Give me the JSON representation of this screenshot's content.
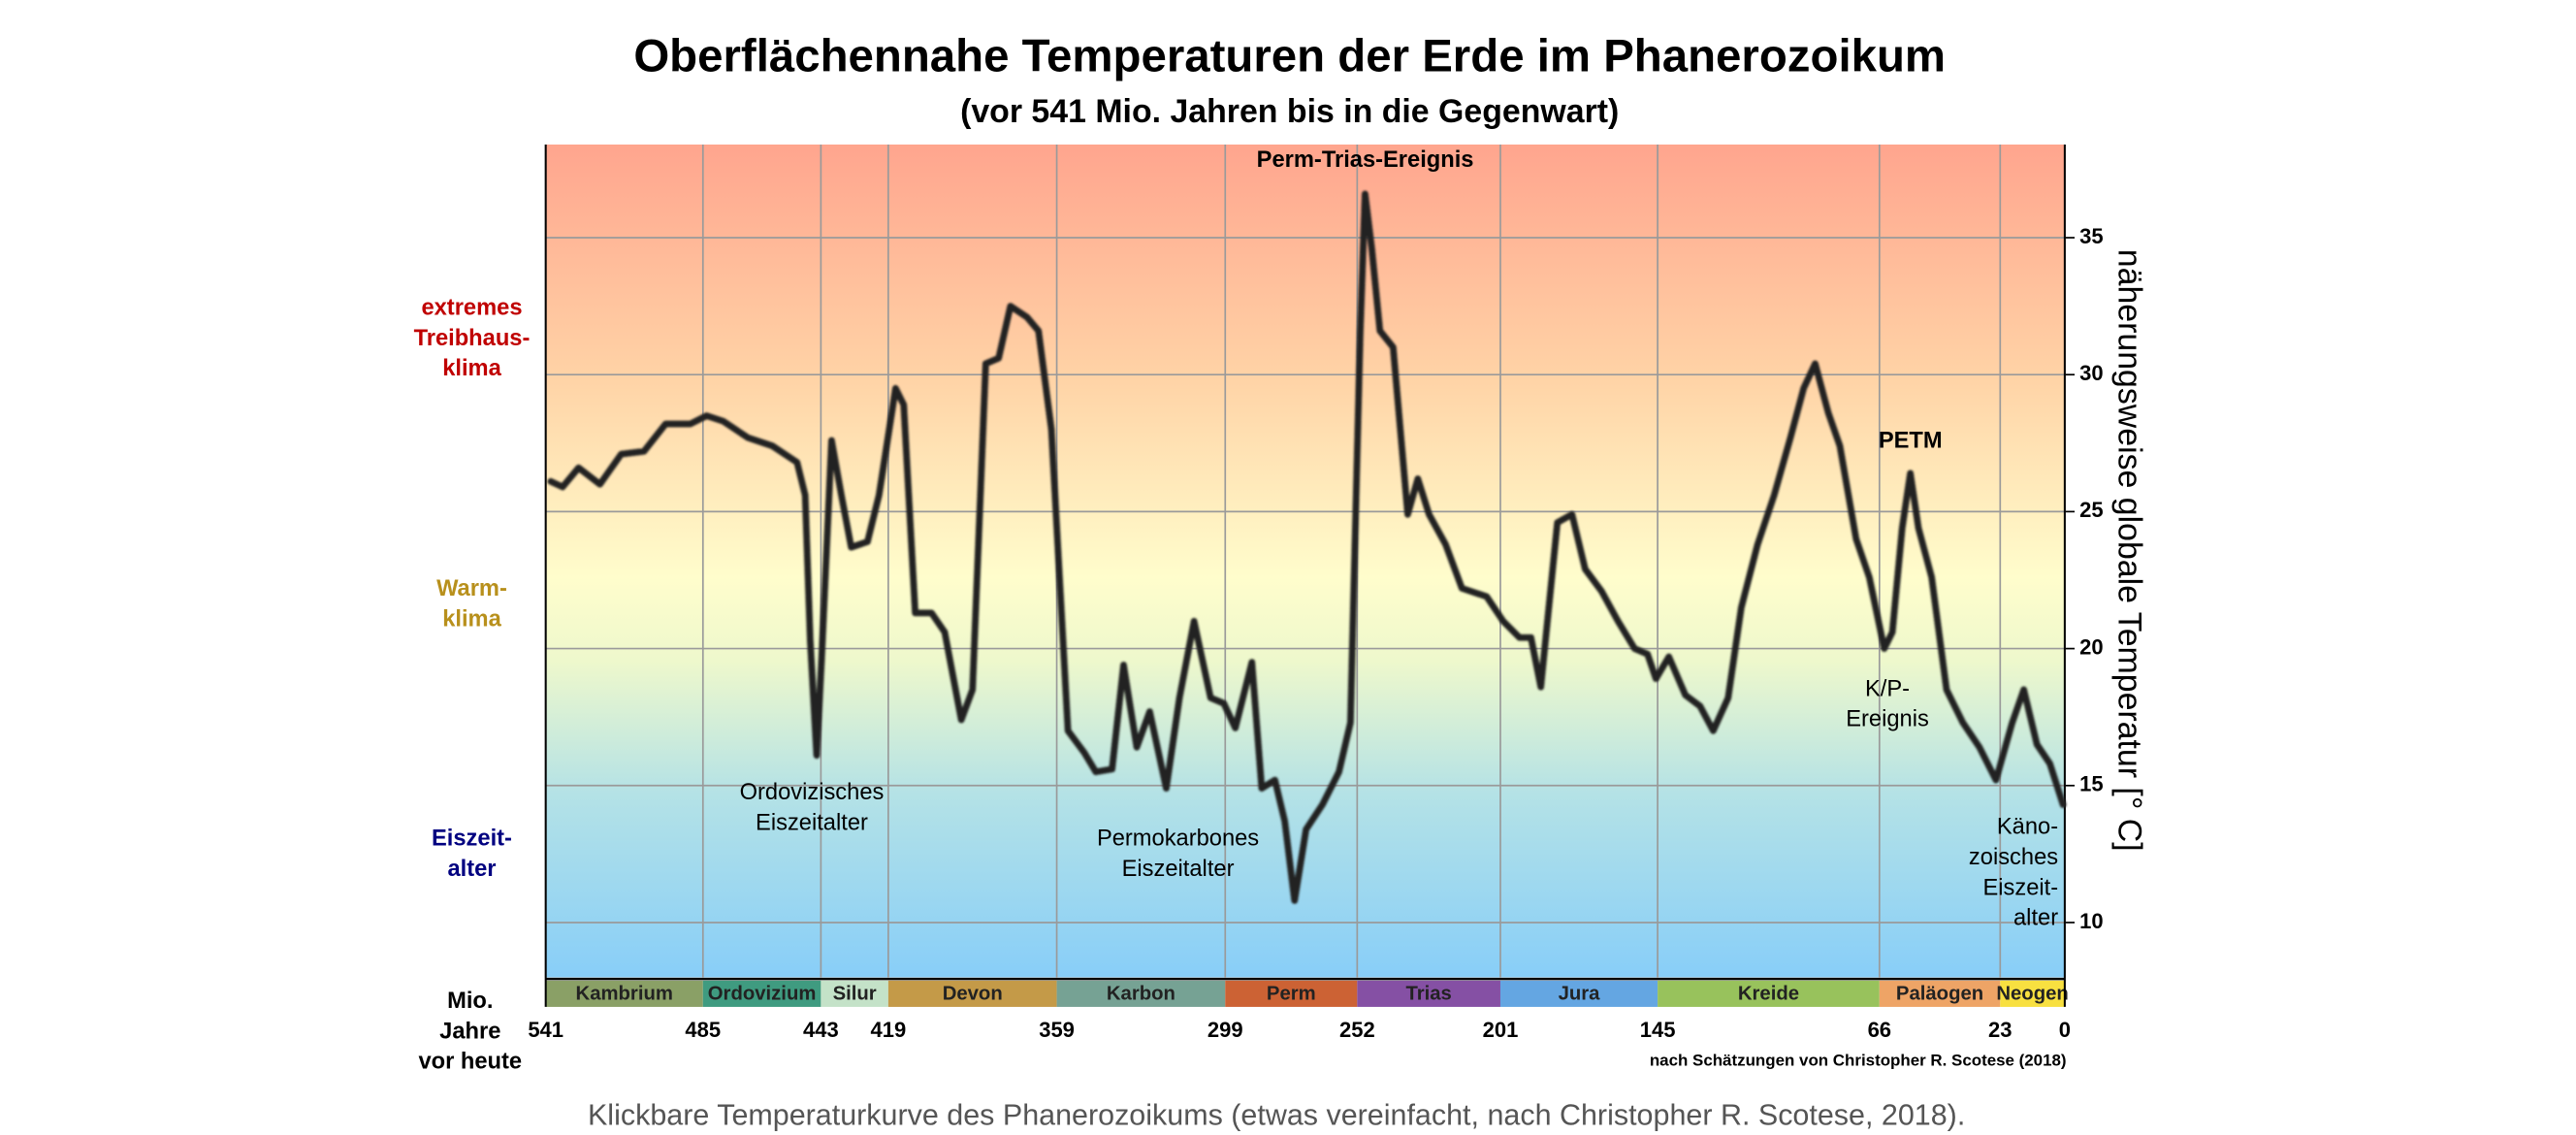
{
  "chart_data": {
    "type": "line",
    "title": "Oberflächennahe Temperaturen der Erde im Phanerozoikum",
    "subtitle": "(vor 541 Mio. Jahren bis in die Gegenwart)",
    "y_label": "näherungsweise  globale Temperatur [° C]",
    "x_label": [
      "Mio.",
      "Jahre",
      "vor heute"
    ],
    "source": "nach Schätzungen von Christopher R. Scotese (2018)",
    "caption": "Klickbare Temperaturkurve des Phanerozoikums (etwas vereinfacht, nach Christopher R. Scotese, 2018).",
    "xlim": [
      541,
      0
    ],
    "ylim": [
      8,
      38.4
    ],
    "xticks": [
      541,
      485,
      443,
      419,
      359,
      299,
      252,
      201,
      145,
      66,
      23,
      0
    ],
    "yticks": [
      10,
      15,
      20,
      25,
      30,
      35
    ],
    "grid": true,
    "periods": {
      "names": [
        "Kambrium",
        "Ordovizium",
        "Silur",
        "Devon",
        "Karbon",
        "Perm",
        "Trias",
        "Jura",
        "Kreide",
        "Paläogen",
        "Neogen"
      ],
      "colors": [
        "#8aa066",
        "#3f9b80",
        "#c4e2c8",
        "#c49a48",
        "#76a294",
        "#cc6234",
        "#8550a4",
        "#64a6e2",
        "#98c25c",
        "#eea466",
        "#f8e040"
      ]
    },
    "zones": [
      {
        "lines": [
          "extremes",
          "Treibhaus-",
          "klima"
        ],
        "color": "#c00000"
      },
      {
        "lines": [
          "Warm-",
          "klima"
        ],
        "color": "#b8901c"
      },
      {
        "lines": [
          "Eiszeit-",
          "alter"
        ],
        "color": "#000080"
      }
    ],
    "annotations": [
      [
        "Perm-Trias-Ereignis"
      ],
      [
        "Ordovizisches",
        "Eiszeitalter"
      ],
      [
        "Permokarbones",
        "Eiszeitalter"
      ],
      [
        "PETM"
      ],
      [
        "K/P-",
        "Ereignis"
      ],
      [
        "Käno-",
        "zoisches",
        "Eiszeit-",
        "alter"
      ]
    ],
    "series": [
      {
        "color": "#222222",
        "x": [
          539.2,
          535,
          529.3,
          521.7,
          514.1,
          506,
          498.3,
          489.5,
          483.7,
          477.8,
          469,
          460.3,
          451.5,
          448.6,
          446.8,
          444.5,
          442.7,
          439.2,
          435.7,
          432.2,
          426.4,
          422.3,
          416.4,
          413.5,
          409.4,
          403.6,
          398.9,
          393,
          389,
          384.3,
          379.7,
          375.5,
          369.6,
          365.5,
          360.9,
          355,
          349.2,
          345.1,
          339.3,
          335.2,
          330.5,
          325.9,
          320,
          315.3,
          310.1,
          304.2,
          299.5,
          295.4,
          289.5,
          286,
          281.3,
          277.8,
          274.3,
          270.2,
          264.4,
          258.5,
          254.4,
          250.9,
          249.2,
          246.8,
          243.9,
          239.2,
          234,
          230.4,
          226.4,
          220.5,
          214.7,
          205.9,
          200,
          194.2,
          190.1,
          186.6,
          180.7,
          175.5,
          170.8,
          165,
          159.1,
          153.2,
          148.6,
          145.6,
          141,
          135.1,
          129.9,
          125.2,
          119.9,
          115.2,
          109.4,
          103.5,
          97.7,
          93,
          88.9,
          84.2,
          80.1,
          74.3,
          69.6,
          64.3,
          61.4,
          57.9,
          55,
          52.1,
          47.4,
          42.1,
          36.3,
          30.4,
          24.5,
          18.7,
          14.6,
          9.9,
          5.3,
          0.6
        ],
        "values": [
          26.1,
          25.9,
          26.6,
          26,
          27.1,
          27.2,
          28.2,
          28.2,
          28.5,
          28.3,
          27.7,
          27.4,
          26.8,
          25.6,
          20.3,
          16.1,
          19.7,
          27.6,
          25.6,
          23.7,
          23.9,
          25.6,
          29.5,
          28.9,
          21.3,
          21.3,
          20.6,
          17.4,
          18.5,
          30.4,
          30.6,
          32.5,
          32.1,
          31.6,
          28,
          17,
          16.2,
          15.5,
          15.6,
          19.4,
          16.4,
          17.7,
          14.9,
          18.2,
          21,
          18.2,
          18,
          17.1,
          19.5,
          14.9,
          15.2,
          13.7,
          10.8,
          13.4,
          14.3,
          15.5,
          17.3,
          31.6,
          36.6,
          34.6,
          31.6,
          31,
          24.9,
          26.2,
          24.9,
          23.8,
          22.2,
          21.9,
          21,
          20.4,
          20.4,
          18.6,
          24.6,
          24.9,
          22.9,
          22.1,
          21,
          20,
          19.8,
          18.9,
          19.7,
          18.3,
          17.9,
          17,
          18.2,
          21.5,
          23.8,
          25.6,
          27.7,
          29.5,
          30.4,
          28.6,
          27.4,
          24,
          22.6,
          20,
          20.6,
          24.4,
          26.4,
          24.4,
          22.6,
          18.5,
          17.3,
          16.4,
          15.2,
          17.3,
          18.5,
          16.5,
          15.8,
          14.3
        ]
      }
    ]
  }
}
